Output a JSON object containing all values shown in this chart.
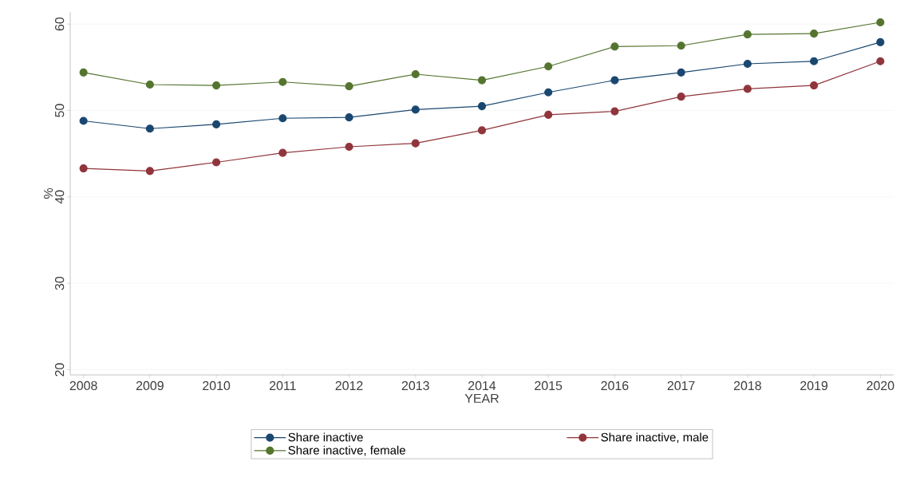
{
  "chart_data": {
    "type": "line",
    "xlabel": "YEAR",
    "ylabel": "%",
    "x": [
      2008,
      2009,
      2010,
      2011,
      2012,
      2013,
      2014,
      2015,
      2016,
      2017,
      2018,
      2019,
      2020
    ],
    "xlim": [
      2007.8,
      2020.2
    ],
    "xticks": [
      2008,
      2009,
      2010,
      2011,
      2012,
      2013,
      2014,
      2015,
      2016,
      2017,
      2018,
      2019,
      2020
    ],
    "ylim": [
      19.4,
      61.4
    ],
    "yticks": [
      20,
      30,
      40,
      50,
      60
    ],
    "grid": "y",
    "legend": "bottom",
    "marker": "circle",
    "line_style": "solid",
    "series": [
      {
        "name": "Share inactive",
        "color": "#1a476f",
        "values": [
          48.8,
          47.9,
          48.4,
          49.1,
          49.2,
          50.1,
          50.5,
          52.1,
          53.5,
          54.4,
          55.4,
          55.7,
          57.9
        ]
      },
      {
        "name": "Share inactive, male",
        "color": "#90353b",
        "values": [
          43.3,
          43.0,
          44.0,
          45.1,
          45.8,
          46.2,
          47.7,
          49.5,
          49.9,
          51.6,
          52.5,
          52.9,
          55.7
        ]
      },
      {
        "name": "Share inactive, female",
        "color": "#55752f",
        "values": [
          54.4,
          53.0,
          52.9,
          53.3,
          52.8,
          54.2,
          53.5,
          55.1,
          57.4,
          57.5,
          58.8,
          58.9,
          60.2
        ]
      }
    ]
  }
}
